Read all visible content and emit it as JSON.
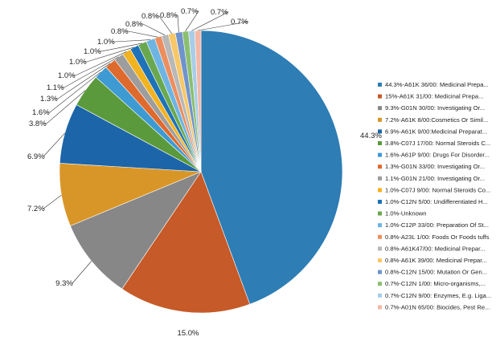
{
  "chart_data": {
    "type": "pie",
    "title": "",
    "legend_position": "right",
    "slices": [
      {
        "value": 44.3,
        "label": "44.3%",
        "legend": "44.3%-A61K 36/00: Medicinal Prepa...",
        "color": "#2e7db5"
      },
      {
        "value": 15.0,
        "label": "15.0%",
        "legend": "15%-A61K 31/00: Medicinal Prepa...",
        "color": "#c65a28"
      },
      {
        "value": 9.3,
        "label": "9.3%",
        "legend": "9.3%-G01N 30/00: Investigating Or...",
        "color": "#878787"
      },
      {
        "value": 7.2,
        "label": "7.2%",
        "legend": "7.2%-A61K 8/00:Cosmetics Or Simil...",
        "color": "#d99628"
      },
      {
        "value": 6.9,
        "label": "6.9%",
        "legend": "6.9%-A61K 9/00:Medicinal Preparat...",
        "color": "#1c65a8"
      },
      {
        "value": 3.8,
        "label": "3.8%",
        "legend": "3.8%-C07J 17/00: Normal Steroids C...",
        "color": "#5b9a3c"
      },
      {
        "value": 1.6,
        "label": "1.6%",
        "legend": "1.6%-A61P 9/00: Drugs For Disorder...",
        "color": "#3d9ad2"
      },
      {
        "value": 1.3,
        "label": "1.3%",
        "legend": "1.3%-G01N 33/00: Investigating Or...",
        "color": "#de6a2e"
      },
      {
        "value": 1.1,
        "label": "1.1%",
        "legend": "1.1%-G01N 21/00: Investigating Or...",
        "color": "#9d9d9d"
      },
      {
        "value": 1.0,
        "label": "1.0%",
        "legend": "1.0%-C07J 9/00: Normal Steroids Co...",
        "color": "#f2b320"
      },
      {
        "value": 1.0,
        "label": "1.0%",
        "legend": "1.0%-C12N 5/00: Undifferentiated H...",
        "color": "#1d72b8"
      },
      {
        "value": 1.0,
        "label": "1.0%",
        "legend": "1.0%-Unknown",
        "color": "#6aa84f"
      },
      {
        "value": 1.0,
        "label": "1.0%",
        "legend": "1.0%-C12P 33/00: Preparation Of St...",
        "color": "#6db4e3"
      },
      {
        "value": 0.8,
        "label": "0.8%",
        "legend": "0.8%-A23L 1/00: Foods Or Foods tuffs",
        "color": "#ec8e5f"
      },
      {
        "value": 0.8,
        "label": "0.8%",
        "legend": "0.8%-A61K47/00: Medicinal Prepar...",
        "color": "#b8b8b8"
      },
      {
        "value": 0.8,
        "label": "0.8%",
        "legend": "0.8%-A61K 39/00: Medicinal Prepar...",
        "color": "#f8c768"
      },
      {
        "value": 0.8,
        "label": "0.8%",
        "legend": "0.8%-C12N 15/00: Mutation Or Gen...",
        "color": "#6f93cc"
      },
      {
        "value": 0.7,
        "label": "0.7%",
        "legend": "0.7%-C12N 1/00: Micro-organisms,...",
        "color": "#8bbf6f"
      },
      {
        "value": 0.7,
        "label": "0.7%",
        "legend": "0.7%-C12N 9/00: Enzymes, E.g. Liga...",
        "color": "#a8cde8"
      },
      {
        "value": 0.7,
        "label": "0.7%",
        "legend": "0.7%-A01N 65/00: Biocides, Pest Re...",
        "color": "#f4b8a4"
      }
    ]
  }
}
